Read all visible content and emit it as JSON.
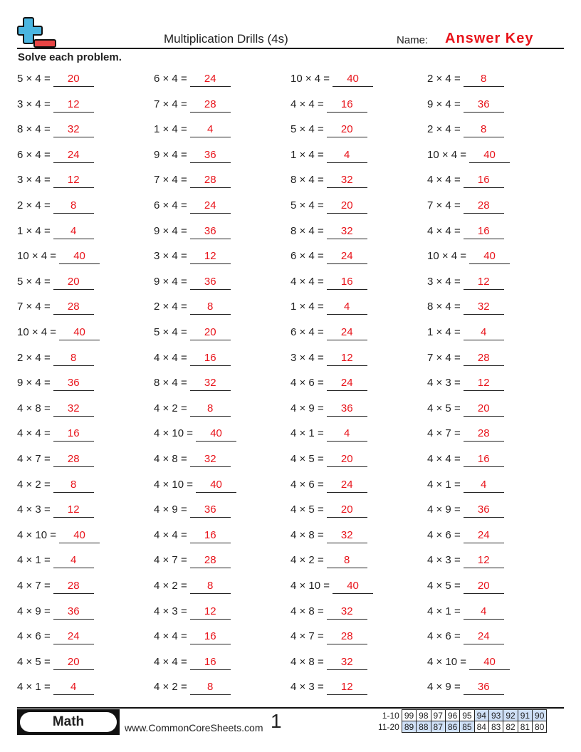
{
  "header": {
    "title": "Multiplication Drills (4s)",
    "name_label": "Name:",
    "name_value": "Answer Key",
    "instructions": "Solve each problem."
  },
  "colors": {
    "answer": "#e8141b",
    "logo_plus": "#4bb5e0",
    "logo_minus": "#e84545",
    "score_highlight": "#cfe0f7"
  },
  "columns": [
    [
      [
        "5 × 4 =",
        "20"
      ],
      [
        "3 × 4 =",
        "12"
      ],
      [
        "8 × 4 =",
        "32"
      ],
      [
        "6 × 4 =",
        "24"
      ],
      [
        "3 × 4 =",
        "12"
      ],
      [
        "2 × 4 =",
        "8"
      ],
      [
        "1 × 4 =",
        "4"
      ],
      [
        "10 × 4 =",
        "40"
      ],
      [
        "5 × 4 =",
        "20"
      ],
      [
        "7 × 4 =",
        "28"
      ],
      [
        "10 × 4 =",
        "40"
      ],
      [
        "2 × 4 =",
        "8"
      ],
      [
        "9 × 4 =",
        "36"
      ],
      [
        "4 × 8 =",
        "32"
      ],
      [
        "4 × 4 =",
        "16"
      ],
      [
        "4 × 7 =",
        "28"
      ],
      [
        "4 × 2 =",
        "8"
      ],
      [
        "4 × 3 =",
        "12"
      ],
      [
        "4 × 10 =",
        "40"
      ],
      [
        "4 × 1 =",
        "4"
      ],
      [
        "4 × 7 =",
        "28"
      ],
      [
        "4 × 9 =",
        "36"
      ],
      [
        "4 × 6 =",
        "24"
      ],
      [
        "4 × 5 =",
        "20"
      ],
      [
        "4 × 1 =",
        "4"
      ]
    ],
    [
      [
        "6 × 4 =",
        "24"
      ],
      [
        "7 × 4 =",
        "28"
      ],
      [
        "1 × 4 =",
        "4"
      ],
      [
        "9 × 4 =",
        "36"
      ],
      [
        "7 × 4 =",
        "28"
      ],
      [
        "6 × 4 =",
        "24"
      ],
      [
        "9 × 4 =",
        "36"
      ],
      [
        "3 × 4 =",
        "12"
      ],
      [
        "9 × 4 =",
        "36"
      ],
      [
        "2 × 4 =",
        "8"
      ],
      [
        "5 × 4 =",
        "20"
      ],
      [
        "4 × 4 =",
        "16"
      ],
      [
        "8 × 4 =",
        "32"
      ],
      [
        "4 × 2 =",
        "8"
      ],
      [
        "4 × 10 =",
        "40"
      ],
      [
        "4 × 8 =",
        "32"
      ],
      [
        "4 × 10 =",
        "40"
      ],
      [
        "4 × 9 =",
        "36"
      ],
      [
        "4 × 4 =",
        "16"
      ],
      [
        "4 × 7 =",
        "28"
      ],
      [
        "4 × 2 =",
        "8"
      ],
      [
        "4 × 3 =",
        "12"
      ],
      [
        "4 × 4 =",
        "16"
      ],
      [
        "4 × 4 =",
        "16"
      ],
      [
        "4 × 2 =",
        "8"
      ]
    ],
    [
      [
        "10 × 4 =",
        "40"
      ],
      [
        "4 × 4 =",
        "16"
      ],
      [
        "5 × 4 =",
        "20"
      ],
      [
        "1 × 4 =",
        "4"
      ],
      [
        "8 × 4 =",
        "32"
      ],
      [
        "5 × 4 =",
        "20"
      ],
      [
        "8 × 4 =",
        "32"
      ],
      [
        "6 × 4 =",
        "24"
      ],
      [
        "4 × 4 =",
        "16"
      ],
      [
        "1 × 4 =",
        "4"
      ],
      [
        "6 × 4 =",
        "24"
      ],
      [
        "3 × 4 =",
        "12"
      ],
      [
        "4 × 6 =",
        "24"
      ],
      [
        "4 × 9 =",
        "36"
      ],
      [
        "4 × 1 =",
        "4"
      ],
      [
        "4 × 5 =",
        "20"
      ],
      [
        "4 × 6 =",
        "24"
      ],
      [
        "4 × 5 =",
        "20"
      ],
      [
        "4 × 8 =",
        "32"
      ],
      [
        "4 × 2 =",
        "8"
      ],
      [
        "4 × 10 =",
        "40"
      ],
      [
        "4 × 8 =",
        "32"
      ],
      [
        "4 × 7 =",
        "28"
      ],
      [
        "4 × 8 =",
        "32"
      ],
      [
        "4 × 3 =",
        "12"
      ]
    ],
    [
      [
        "2 × 4 =",
        "8"
      ],
      [
        "9 × 4 =",
        "36"
      ],
      [
        "2 × 4 =",
        "8"
      ],
      [
        "10 × 4 =",
        "40"
      ],
      [
        "4 × 4 =",
        "16"
      ],
      [
        "7 × 4 =",
        "28"
      ],
      [
        "4 × 4 =",
        "16"
      ],
      [
        "10 × 4 =",
        "40"
      ],
      [
        "3 × 4 =",
        "12"
      ],
      [
        "8 × 4 =",
        "32"
      ],
      [
        "1 × 4 =",
        "4"
      ],
      [
        "7 × 4 =",
        "28"
      ],
      [
        "4 × 3 =",
        "12"
      ],
      [
        "4 × 5 =",
        "20"
      ],
      [
        "4 × 7 =",
        "28"
      ],
      [
        "4 × 4 =",
        "16"
      ],
      [
        "4 × 1 =",
        "4"
      ],
      [
        "4 × 9 =",
        "36"
      ],
      [
        "4 × 6 =",
        "24"
      ],
      [
        "4 × 3 =",
        "12"
      ],
      [
        "4 × 5 =",
        "20"
      ],
      [
        "4 × 1 =",
        "4"
      ],
      [
        "4 × 6 =",
        "24"
      ],
      [
        "4 × 10 =",
        "40"
      ],
      [
        "4 × 9 =",
        "36"
      ]
    ]
  ],
  "footer": {
    "badge": "Math",
    "site": "www.CommonCoreSheets.com",
    "page": "1",
    "score_rows": [
      {
        "label": "1-10",
        "values": [
          "99",
          "98",
          "97",
          "96",
          "95",
          "94",
          "93",
          "92",
          "91",
          "90"
        ],
        "highlight": [
          5,
          6,
          7,
          8,
          9
        ]
      },
      {
        "label": "11-20",
        "values": [
          "89",
          "88",
          "87",
          "86",
          "85",
          "84",
          "83",
          "82",
          "81",
          "80"
        ],
        "highlight": [
          0,
          1,
          2,
          3,
          4
        ]
      }
    ]
  }
}
